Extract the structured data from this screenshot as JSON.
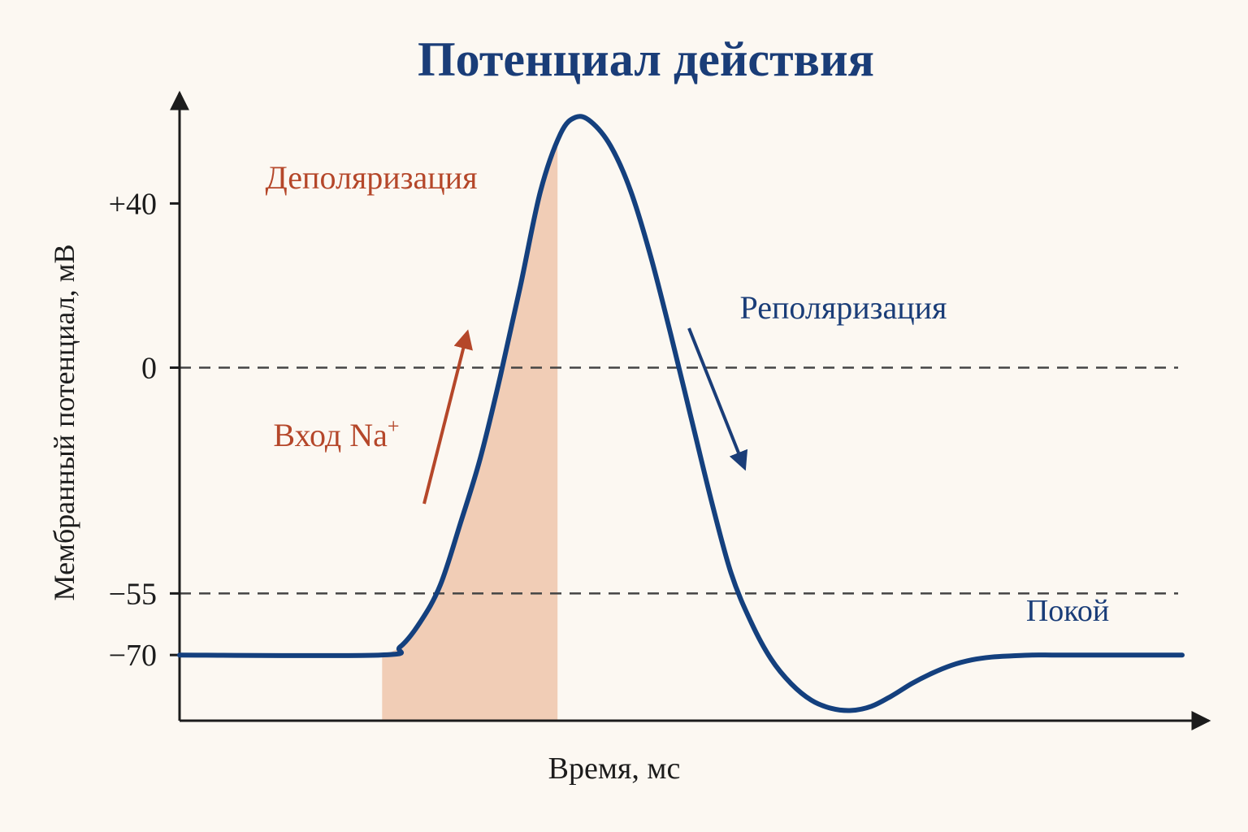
{
  "chart_data": {
    "type": "line",
    "title": "Потенциал действия",
    "xlabel": "Время, мс",
    "ylabel": "Мембранный потенциал, мВ",
    "ylim": [
      -86,
      67
    ],
    "y_ticks": [
      {
        "value": 40,
        "label": "+40"
      },
      {
        "value": 0,
        "label": "0"
      },
      {
        "value": -55,
        "label": "−55"
      },
      {
        "value": -70,
        "label": "−70"
      }
    ],
    "reference_lines": [
      {
        "value": 0,
        "style": "dashed"
      },
      {
        "value": -55,
        "style": "dashed"
      }
    ],
    "shaded_region": {
      "x_start": 2.02,
      "x_end": 3.77,
      "label": "Вход Na+"
    },
    "series": [
      {
        "x": [
          0,
          2.0,
          2.2,
          2.4,
          2.6,
          2.8,
          3.0,
          3.2,
          3.4,
          3.6,
          3.8,
          3.95,
          4.1,
          4.3,
          4.5,
          4.7,
          4.9,
          5.1,
          5.3,
          5.5,
          5.7,
          5.9,
          6.1,
          6.3,
          6.5,
          6.7,
          6.9,
          7.1,
          7.3,
          7.5,
          7.7,
          7.9,
          8.1,
          8.3,
          8.5,
          8.7,
          8.9,
          9.2,
          9.6,
          10.0
        ],
        "y": [
          -70,
          -70,
          -68,
          -62,
          -53,
          -38,
          -22,
          -2,
          20,
          43,
          57,
          61,
          60,
          54,
          43,
          27,
          8,
          -12,
          -32,
          -50,
          -62,
          -71,
          -77,
          -81,
          -83,
          -83.5,
          -82.5,
          -80,
          -77,
          -74.5,
          -72.5,
          -71.2,
          -70.5,
          -70.2,
          -70,
          -70,
          -70,
          -70,
          -70,
          -70
        ]
      }
    ],
    "annotations": [
      {
        "text": "Деполяризация",
        "color": "#b5472a"
      },
      {
        "text": "Реполяризация",
        "color": "#1a3d78"
      },
      {
        "text": "Покой",
        "color": "#1a3d78"
      },
      {
        "text": "Вход Na",
        "superscript": "+",
        "color": "#b5472a"
      }
    ],
    "colors": {
      "title": "#1a3d78",
      "curve": "#14407e",
      "shade": "#f1cdb6",
      "depolarization": "#b5472a",
      "repolarization": "#1a3d78",
      "axis": "#1c1c1c",
      "dashed": "#444444",
      "background": "#fcf8f2"
    }
  }
}
